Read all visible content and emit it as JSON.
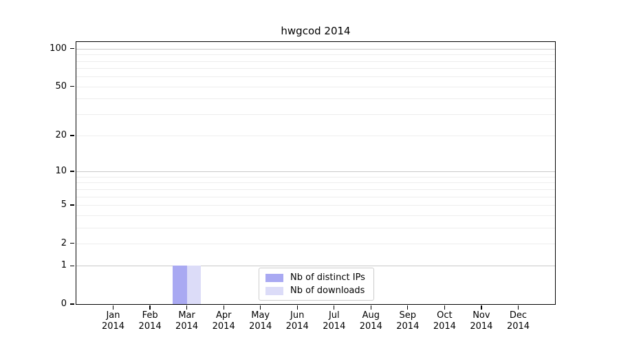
{
  "chart_data": {
    "type": "bar",
    "title": "hwgcod 2014",
    "categories": [
      "Jan",
      "Feb",
      "Mar",
      "Apr",
      "May",
      "Jun",
      "Jul",
      "Aug",
      "Sep",
      "Oct",
      "Nov",
      "Dec"
    ],
    "category_year": "2014",
    "series": [
      {
        "name": "Nb of distinct IPs",
        "color": "#a9a9f2",
        "values": [
          0,
          0,
          1,
          0,
          0,
          0,
          0,
          0,
          0,
          0,
          0,
          0
        ]
      },
      {
        "name": "Nb of downloads",
        "color": "#dcdcf8",
        "values": [
          0,
          0,
          1,
          0,
          0,
          0,
          0,
          0,
          0,
          0,
          0,
          0
        ]
      }
    ],
    "y_scale": "log1p",
    "ylim": [
      0,
      113
    ],
    "y_ticks": [
      0,
      1,
      2,
      5,
      10,
      20,
      50,
      100
    ],
    "y_tick_labels": [
      "0",
      "1",
      "2",
      "5",
      "10",
      "20",
      "50",
      "100"
    ],
    "y_major_gridlines": [
      1,
      10,
      100
    ],
    "y_minor_gridlines": [
      2,
      3,
      4,
      5,
      6,
      7,
      8,
      9,
      20,
      30,
      40,
      50,
      60,
      70,
      80,
      90
    ],
    "bar_width_fraction": 0.39,
    "legend_position": "lower center",
    "grid": true,
    "colors": {
      "axis": "#000000",
      "major_grid": "#c9c9c9",
      "minor_grid": "#ededed",
      "background": "#ffffff"
    }
  }
}
